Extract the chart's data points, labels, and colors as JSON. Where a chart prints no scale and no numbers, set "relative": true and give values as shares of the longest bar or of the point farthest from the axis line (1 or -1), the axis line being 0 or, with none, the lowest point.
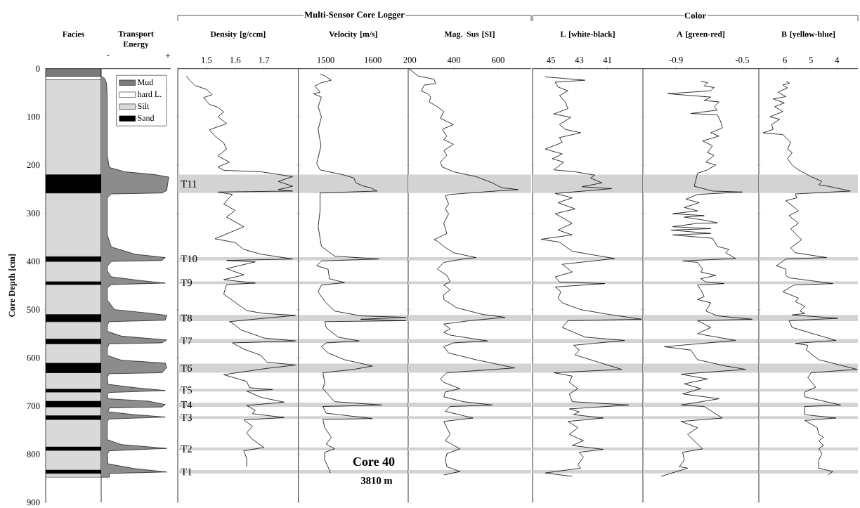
{
  "chart_data": [
    {
      "type": "bar",
      "stacked": true,
      "title": "Facies",
      "ylabel": "Core Depth [cm]",
      "categories": [
        null
      ],
      "ylim": [
        900,
        0
      ],
      "yticks": [
        0,
        100,
        200,
        300,
        400,
        500,
        600,
        700,
        800,
        900
      ],
      "tick_labels": "y",
      "legend": "right",
      "series": [
        {
          "name": "Mud",
          "color": "#7a7a7a",
          "values": [
            16
          ]
        },
        {
          "name": "hard L.",
          "color": "#ffffff",
          "values": [
            7
          ]
        },
        {
          "name": "Silt",
          "color": "#d9d9d9",
          "values": [
            197
          ]
        },
        {
          "name": "Sand",
          "color": "#000000",
          "values": [
            38
          ]
        },
        {
          "color": "#d9d9d9",
          "values": [
            132
          ]
        },
        {
          "color": "#000000",
          "values": [
            10
          ]
        },
        {
          "color": "#d9d9d9",
          "values": [
            42
          ]
        },
        {
          "color": "#000000",
          "values": [
            6
          ]
        },
        {
          "color": "#d9d9d9",
          "values": [
            62
          ]
        },
        {
          "color": "#000000",
          "values": [
            15
          ]
        },
        {
          "color": "#d9d9d9",
          "values": [
            36
          ]
        },
        {
          "color": "#000000",
          "values": [
            10
          ]
        },
        {
          "color": "#d9d9d9",
          "values": [
            40
          ]
        },
        {
          "color": "#000000",
          "values": [
            20
          ]
        },
        {
          "color": "#d9d9d9",
          "values": [
            34
          ]
        },
        {
          "color": "#000000",
          "values": [
            6
          ]
        },
        {
          "color": "#d9d9d9",
          "values": [
            19
          ]
        },
        {
          "color": "#000000",
          "values": [
            12
          ]
        },
        {
          "color": "#d9d9d9",
          "values": [
            18
          ]
        },
        {
          "color": "#000000",
          "values": [
            8
          ]
        },
        {
          "color": "#d9d9d9",
          "values": [
            57
          ]
        },
        {
          "color": "#000000",
          "values": [
            7
          ]
        },
        {
          "color": "#d9d9d9",
          "values": [
            41
          ]
        },
        {
          "color": "#000000",
          "values": [
            7
          ]
        },
        {
          "color": "#d9d9d9",
          "values": [
            8
          ]
        }
      ]
    },
    {
      "type": "area",
      "orientation": "horizontal",
      "relative": true,
      "title": "Transport Energy",
      "ylim": [
        900,
        0
      ],
      "tick_labels": false,
      "color": "#8c8c8c",
      "annotations": [
        "-",
        "+"
      ],
      "x": [
        16,
        20,
        30,
        60,
        180,
        205,
        214,
        220,
        225,
        253,
        258,
        260,
        268,
        345,
        370,
        385,
        392,
        398,
        400,
        410,
        420,
        432,
        440,
        445,
        448,
        455,
        480,
        500,
        508,
        512,
        522,
        525,
        532,
        545,
        555,
        563,
        569,
        571,
        580,
        595,
        605,
        611,
        620,
        631,
        633,
        640,
        655,
        662,
        668,
        672,
        676,
        685,
        690,
        697,
        702,
        704,
        712,
        718,
        723,
        727,
        732,
        770,
        780,
        788,
        793,
        800,
        820,
        830,
        837,
        840,
        848,
        848
      ],
      "values": [
        0,
        0.05,
        0.08,
        0.09,
        0.09,
        0.12,
        0.35,
        0.8,
        1,
        0.97,
        0.9,
        0.15,
        0.09,
        0.09,
        0.15,
        0.5,
        0.95,
        0.9,
        0.15,
        0.09,
        0.09,
        0.15,
        0.6,
        0.95,
        0.15,
        0.09,
        0.09,
        0.2,
        0.75,
        0.97,
        0.95,
        0.12,
        0.09,
        0.09,
        0.3,
        0.97,
        0.9,
        0.12,
        0.09,
        0.09,
        0.3,
        0.95,
        0.97,
        0.9,
        0.12,
        0.09,
        0.1,
        0.5,
        0.95,
        0.12,
        0.09,
        0.1,
        0.7,
        0.95,
        0.9,
        0.12,
        0.1,
        0.5,
        0.95,
        0.12,
        0.09,
        0.09,
        0.3,
        0.97,
        0.12,
        0.09,
        0.1,
        0.5,
        0.97,
        0.12,
        0.12,
        0
      ]
    },
    {
      "type": "line",
      "orientation": "horizontal",
      "title": "Density [g/ccm]",
      "xlim": [
        1.4,
        1.82
      ],
      "xticks": [
        1.5,
        1.6,
        1.7
      ],
      "ylim": [
        900,
        0
      ],
      "yticks": [
        0,
        100,
        200,
        300,
        400,
        500,
        600,
        700,
        800,
        900
      ],
      "tick_labels": "x",
      "color": "#000000",
      "annotations": [
        "Multi-Sensor Core Logger"
      ],
      "x": [
        15,
        23,
        35,
        43,
        54,
        60,
        74,
        80,
        90,
        100,
        114,
        127,
        140,
        154,
        167,
        181,
        194,
        204,
        211,
        214,
        224,
        234,
        244,
        251,
        254,
        256,
        261,
        281,
        294,
        308,
        328,
        353,
        361,
        375,
        385,
        395,
        398,
        401,
        415,
        428,
        438,
        445,
        448,
        468,
        485,
        502,
        508,
        512,
        518,
        525,
        532,
        542,
        559,
        565,
        569,
        582,
        595,
        609,
        615,
        622,
        635,
        649,
        662,
        666,
        669,
        682,
        692,
        699,
        709,
        716,
        724,
        729,
        742,
        756,
        769,
        786,
        793,
        809,
        826
      ],
      "values": [
        1.43,
        1.44,
        1.46,
        1.5,
        1.52,
        1.49,
        1.51,
        1.54,
        1.56,
        1.54,
        1.57,
        1.51,
        1.53,
        1.56,
        1.57,
        1.54,
        1.58,
        1.54,
        1.56,
        1.69,
        1.8,
        1.75,
        1.8,
        1.75,
        1.8,
        1.54,
        1.59,
        1.56,
        1.6,
        1.57,
        1.63,
        1.53,
        1.6,
        1.63,
        1.69,
        1.8,
        1.57,
        1.67,
        1.57,
        1.63,
        1.56,
        1.67,
        1.57,
        1.56,
        1.6,
        1.64,
        1.7,
        1.81,
        1.7,
        1.58,
        1.6,
        1.62,
        1.7,
        1.81,
        1.59,
        1.63,
        1.69,
        1.71,
        1.81,
        1.71,
        1.56,
        1.64,
        1.65,
        1.73,
        1.64,
        1.69,
        1.77,
        1.64,
        1.67,
        1.66,
        1.77,
        1.63,
        1.66,
        1.64,
        1.66,
        1.7,
        1.63,
        1.64,
        1.64
      ],
      "bands": [
        {
          "axis": "y",
          "from": 220,
          "to": 258,
          "label": "T11",
          "color": "#d3d3d3"
        },
        {
          "axis": "y",
          "from": 391,
          "to": 398,
          "label": "T10",
          "color": "#d3d3d3"
        },
        {
          "axis": "y",
          "from": 441,
          "to": 447,
          "label": "T9",
          "color": "#d3d3d3"
        },
        {
          "axis": "y",
          "from": 511,
          "to": 524,
          "label": "T8",
          "color": "#d3d3d3"
        },
        {
          "axis": "y",
          "from": 561,
          "to": 569,
          "label": "T7",
          "color": "#d3d3d3"
        },
        {
          "axis": "y",
          "from": 612,
          "to": 631,
          "label": "T6",
          "color": "#d3d3d3"
        },
        {
          "axis": "y",
          "from": 664,
          "to": 670,
          "label": "T5",
          "color": "#d3d3d3"
        },
        {
          "axis": "y",
          "from": 693,
          "to": 702,
          "label": "T4",
          "color": "#d3d3d3"
        },
        {
          "axis": "y",
          "from": 721,
          "to": 727,
          "label": "T3",
          "color": "#d3d3d3"
        },
        {
          "axis": "y",
          "from": 786,
          "to": 792,
          "label": "T2",
          "color": "#d3d3d3"
        },
        {
          "axis": "y",
          "from": 833,
          "to": 840,
          "label": "T1",
          "color": "#d3d3d3"
        }
      ]
    },
    {
      "type": "line",
      "orientation": "horizontal",
      "title": "Velocity [m/s]",
      "xlim": [
        1442,
        1675
      ],
      "xticks": [
        1500,
        1600
      ],
      "ylim": [
        900,
        0
      ],
      "yticks": [
        0,
        100,
        200,
        300,
        400,
        500,
        600,
        700,
        800,
        900
      ],
      "tick_labels": "x",
      "color": "#000000",
      "annotations": [
        "Core 40",
        "3810 m"
      ],
      "x": [
        11,
        15,
        24,
        29,
        36,
        49,
        52,
        59,
        79,
        100,
        126,
        160,
        197,
        210,
        221,
        227,
        237,
        244,
        247,
        254,
        258,
        295,
        328,
        369,
        389,
        395,
        399,
        409,
        416,
        436,
        444,
        449,
        463,
        483,
        503,
        513,
        516,
        520,
        523,
        525,
        537,
        557,
        565,
        569,
        577,
        590,
        604,
        617,
        624,
        631,
        651,
        664,
        691,
        698,
        701,
        715,
        726,
        728,
        745,
        765,
        779,
        789,
        796,
        812,
        833,
        839
      ],
      "values": [
        1488,
        1498,
        1512,
        1491,
        1477,
        1488,
        1474,
        1491,
        1484,
        1491,
        1484,
        1490,
        1481,
        1488,
        1540,
        1560,
        1564,
        1581,
        1595,
        1609,
        1488,
        1488,
        1484,
        1491,
        1519,
        1613,
        1491,
        1481,
        1505,
        1508,
        1540,
        1491,
        1484,
        1498,
        1519,
        1574,
        1670,
        1574,
        1670,
        1498,
        1501,
        1526,
        1571,
        1501,
        1491,
        1505,
        1540,
        1599,
        1560,
        1494,
        1498,
        1494,
        1519,
        1619,
        1494,
        1501,
        1599,
        1494,
        1498,
        1512,
        1501,
        1519,
        1498,
        1498,
        1508,
        1510
      ],
      "bands": [
        {
          "axis": "y",
          "from": 220,
          "to": 258,
          "color": "#d3d3d3"
        },
        {
          "axis": "y",
          "from": 391,
          "to": 398,
          "color": "#d3d3d3"
        },
        {
          "axis": "y",
          "from": 441,
          "to": 447,
          "color": "#d3d3d3"
        },
        {
          "axis": "y",
          "from": 511,
          "to": 524,
          "color": "#d3d3d3"
        },
        {
          "axis": "y",
          "from": 561,
          "to": 569,
          "color": "#d3d3d3"
        },
        {
          "axis": "y",
          "from": 612,
          "to": 631,
          "color": "#d3d3d3"
        },
        {
          "axis": "y",
          "from": 664,
          "to": 670,
          "color": "#d3d3d3"
        },
        {
          "axis": "y",
          "from": 693,
          "to": 702,
          "color": "#d3d3d3"
        },
        {
          "axis": "y",
          "from": 721,
          "to": 727,
          "color": "#d3d3d3"
        },
        {
          "axis": "y",
          "from": 786,
          "to": 792,
          "color": "#d3d3d3"
        },
        {
          "axis": "y",
          "from": 833,
          "to": 840,
          "color": "#d3d3d3"
        }
      ]
    },
    {
      "type": "line",
      "orientation": "horizontal",
      "title": "Mag. Sus [SI]",
      "xlim": [
        193,
        750
      ],
      "xticks": [
        200,
        400,
        600
      ],
      "ylim": [
        900,
        0
      ],
      "yticks": [
        0,
        100,
        200,
        300,
        400,
        500,
        600,
        700,
        800,
        900
      ],
      "tick_labels": "x",
      "color": "#000000",
      "x": [
        0,
        15,
        22,
        31,
        34,
        46,
        52,
        59,
        69,
        79,
        89,
        103,
        116,
        126,
        140,
        147,
        157,
        170,
        180,
        194,
        204,
        214,
        224,
        237,
        244,
        247,
        251,
        253,
        261,
        264,
        281,
        291,
        301,
        321,
        342,
        355,
        358,
        369,
        382,
        392,
        395,
        402,
        416,
        429,
        442,
        449,
        459,
        469,
        479,
        496,
        510,
        516,
        523,
        530,
        540,
        547,
        553,
        565,
        569,
        577,
        590,
        604,
        621,
        631,
        644,
        651,
        664,
        671,
        681,
        691,
        698,
        701,
        711,
        725,
        732,
        745,
        759,
        772,
        779,
        789,
        799,
        812,
        826,
        836,
        843
      ],
      "values": [
        196,
        237,
        310,
        317,
        266,
        251,
        281,
        295,
        288,
        325,
        354,
        339,
        398,
        347,
        368,
        354,
        398,
        354,
        368,
        339,
        347,
        398,
        500,
        574,
        603,
        618,
        691,
        618,
        383,
        361,
        376,
        361,
        376,
        354,
        368,
        310,
        325,
        354,
        398,
        500,
        442,
        354,
        325,
        368,
        383,
        354,
        383,
        354,
        354,
        412,
        530,
        632,
        471,
        354,
        383,
        354,
        383,
        552,
        398,
        354,
        376,
        500,
        676,
        368,
        339,
        354,
        427,
        361,
        354,
        442,
        574,
        383,
        361,
        486,
        354,
        368,
        383,
        361,
        390,
        427,
        368,
        361,
        368,
        427,
        354
      ],
      "bands": [
        {
          "axis": "y",
          "from": 220,
          "to": 258,
          "color": "#d3d3d3"
        },
        {
          "axis": "y",
          "from": 391,
          "to": 398,
          "color": "#d3d3d3"
        },
        {
          "axis": "y",
          "from": 441,
          "to": 447,
          "color": "#d3d3d3"
        },
        {
          "axis": "y",
          "from": 511,
          "to": 524,
          "color": "#d3d3d3"
        },
        {
          "axis": "y",
          "from": 561,
          "to": 569,
          "color": "#d3d3d3"
        },
        {
          "axis": "y",
          "from": 612,
          "to": 631,
          "color": "#d3d3d3"
        },
        {
          "axis": "y",
          "from": 664,
          "to": 670,
          "color": "#d3d3d3"
        },
        {
          "axis": "y",
          "from": 693,
          "to": 702,
          "color": "#d3d3d3"
        },
        {
          "axis": "y",
          "from": 721,
          "to": 727,
          "color": "#d3d3d3"
        },
        {
          "axis": "y",
          "from": 786,
          "to": 792,
          "color": "#d3d3d3"
        },
        {
          "axis": "y",
          "from": 833,
          "to": 840,
          "color": "#d3d3d3"
        }
      ]
    },
    {
      "type": "line",
      "orientation": "horizontal",
      "title": "L [white-black]",
      "xlim": [
        46.3,
        38.5
      ],
      "xticks": [
        45,
        43,
        41
      ],
      "ylim": [
        900,
        0
      ],
      "yticks": [
        0,
        100,
        200,
        300,
        400,
        500,
        600,
        700,
        800,
        900
      ],
      "tick_labels": "x",
      "color": "#000000",
      "annotations": [
        "Color"
      ],
      "x": [
        17,
        24,
        28,
        38,
        46,
        56,
        69,
        83,
        94,
        101,
        116,
        126,
        133,
        143,
        153,
        167,
        177,
        187,
        194,
        210,
        214,
        221,
        227,
        237,
        245,
        249,
        259,
        268,
        278,
        291,
        301,
        321,
        335,
        345,
        354,
        360,
        379,
        394,
        406,
        422,
        432,
        443,
        446,
        453,
        463,
        476,
        486,
        500,
        510,
        520,
        523,
        537,
        557,
        564,
        574,
        584,
        594,
        624,
        631,
        638,
        651,
        664,
        675,
        691,
        698,
        706,
        712,
        718,
        725,
        732,
        745,
        759,
        772,
        782,
        790,
        796,
        806,
        822,
        829,
        839,
        846
      ],
      "values": [
        45.4,
        42.6,
        44.7,
        44.5,
        43.8,
        44.4,
        44.0,
        43.8,
        44.8,
        43.6,
        44.4,
        44.0,
        42.9,
        44.4,
        44.2,
        45.4,
        44.2,
        44.9,
        44.1,
        44.8,
        43.3,
        41.9,
        42.2,
        41.4,
        42.8,
        40.7,
        44.7,
        43.5,
        44.5,
        43.3,
        44.7,
        43.5,
        44.5,
        43.5,
        45.7,
        44.4,
        43.5,
        40.5,
        44.2,
        43.5,
        44.7,
        44.4,
        41.2,
        44.7,
        44.3,
        44.5,
        44.2,
        42.9,
        40.9,
        38.6,
        43.8,
        44.2,
        42.6,
        39.8,
        43.4,
        43.0,
        43.3,
        40.0,
        44.8,
        43.5,
        43.7,
        43.1,
        43.7,
        43.5,
        39.5,
        43.7,
        43.0,
        43.4,
        41.3,
        43.8,
        43.1,
        43.7,
        42.7,
        43.5,
        41.3,
        43.0,
        42.7,
        43.1,
        42.9,
        45.4,
        43.5
      ],
      "bands": [
        {
          "axis": "y",
          "from": 220,
          "to": 258,
          "color": "#d3d3d3"
        },
        {
          "axis": "y",
          "from": 391,
          "to": 398,
          "color": "#d3d3d3"
        },
        {
          "axis": "y",
          "from": 441,
          "to": 447,
          "color": "#d3d3d3"
        },
        {
          "axis": "y",
          "from": 511,
          "to": 524,
          "color": "#d3d3d3"
        },
        {
          "axis": "y",
          "from": 561,
          "to": 569,
          "color": "#d3d3d3"
        },
        {
          "axis": "y",
          "from": 612,
          "to": 631,
          "color": "#d3d3d3"
        },
        {
          "axis": "y",
          "from": 664,
          "to": 670,
          "color": "#d3d3d3"
        },
        {
          "axis": "y",
          "from": 693,
          "to": 702,
          "color": "#d3d3d3"
        },
        {
          "axis": "y",
          "from": 721,
          "to": 727,
          "color": "#d3d3d3"
        },
        {
          "axis": "y",
          "from": 786,
          "to": 792,
          "color": "#d3d3d3"
        },
        {
          "axis": "y",
          "from": 833,
          "to": 840,
          "color": "#d3d3d3"
        }
      ]
    },
    {
      "type": "line",
      "orientation": "horizontal",
      "title": "A [green-red]",
      "xlim": [
        -1.1,
        -0.4
      ],
      "xticks": [
        -0.9,
        -0.5
      ],
      "ylim": [
        900,
        0
      ],
      "yticks": [
        0,
        100,
        200,
        300,
        400,
        500,
        600,
        700,
        800,
        900
      ],
      "tick_labels": "x",
      "color": "#000000",
      "x": [
        26,
        29,
        36,
        39,
        46,
        52,
        59,
        66,
        69,
        79,
        86,
        93,
        96,
        110,
        123,
        133,
        140,
        150,
        160,
        174,
        180,
        194,
        200,
        210,
        217,
        244,
        254,
        256,
        261,
        271,
        278,
        288,
        295,
        301,
        305,
        308,
        315,
        320,
        321,
        328,
        332,
        335,
        342,
        345,
        352,
        369,
        375,
        382,
        394,
        399,
        402,
        416,
        422,
        429,
        436,
        443,
        446,
        449,
        459,
        473,
        479,
        486,
        503,
        513,
        520,
        523,
        537,
        550,
        564,
        577,
        584,
        604,
        617,
        624,
        634,
        644,
        654,
        664,
        675,
        685,
        698,
        701,
        725,
        732,
        745,
        759,
        789,
        796,
        812,
        826,
        829,
        846
      ],
      "values": [
        -0.75,
        -0.71,
        -0.73,
        -0.67,
        -0.69,
        -0.95,
        -0.69,
        -0.73,
        -0.64,
        -0.67,
        -0.65,
        -0.81,
        -0.65,
        -0.63,
        -0.62,
        -0.69,
        -0.64,
        -0.74,
        -0.68,
        -0.71,
        -0.67,
        -0.72,
        -0.66,
        -0.71,
        -0.77,
        -0.79,
        -0.68,
        -0.5,
        -0.77,
        -0.84,
        -0.76,
        -0.85,
        -0.77,
        -0.92,
        -0.73,
        -0.85,
        -0.72,
        -0.65,
        -0.77,
        -0.92,
        -0.69,
        -0.93,
        -0.69,
        -0.92,
        -0.68,
        -0.65,
        -0.58,
        -0.6,
        -0.54,
        -0.86,
        -0.77,
        -0.74,
        -0.75,
        -0.66,
        -0.75,
        -0.72,
        -0.61,
        -0.77,
        -0.75,
        -0.73,
        -0.77,
        -0.69,
        -0.72,
        -0.65,
        -0.44,
        -0.77,
        -0.69,
        -0.77,
        -0.54,
        -0.97,
        -0.81,
        -0.77,
        -0.6,
        -0.48,
        -0.87,
        -0.71,
        -0.85,
        -0.75,
        -0.86,
        -0.64,
        -0.87,
        -0.73,
        -0.62,
        -0.87,
        -0.77,
        -0.83,
        -0.74,
        -0.86,
        -0.85,
        -0.88,
        -0.83,
        -0.99
      ],
      "bands": [
        {
          "axis": "y",
          "from": 220,
          "to": 258,
          "color": "#d3d3d3"
        },
        {
          "axis": "y",
          "from": 391,
          "to": 398,
          "color": "#d3d3d3"
        },
        {
          "axis": "y",
          "from": 441,
          "to": 447,
          "color": "#d3d3d3"
        },
        {
          "axis": "y",
          "from": 511,
          "to": 524,
          "color": "#d3d3d3"
        },
        {
          "axis": "y",
          "from": 561,
          "to": 569,
          "color": "#d3d3d3"
        },
        {
          "axis": "y",
          "from": 612,
          "to": 631,
          "color": "#d3d3d3"
        },
        {
          "axis": "y",
          "from": 664,
          "to": 670,
          "color": "#d3d3d3"
        },
        {
          "axis": "y",
          "from": 693,
          "to": 702,
          "color": "#d3d3d3"
        },
        {
          "axis": "y",
          "from": 721,
          "to": 727,
          "color": "#d3d3d3"
        },
        {
          "axis": "y",
          "from": 786,
          "to": 792,
          "color": "#d3d3d3"
        },
        {
          "axis": "y",
          "from": 833,
          "to": 840,
          "color": "#d3d3d3"
        }
      ]
    },
    {
      "type": "line",
      "orientation": "horizontal",
      "title": "B [yellow-blue]",
      "xlim": [
        7,
        3.2
      ],
      "xticks": [
        6,
        5,
        4
      ],
      "ylim": [
        900,
        0
      ],
      "yticks": [
        0,
        100,
        200,
        300,
        400,
        500,
        600,
        700,
        800,
        900
      ],
      "tick_labels": "x",
      "color": "#000000",
      "x": [
        26,
        30,
        34,
        40,
        49,
        58,
        63,
        71,
        79,
        89,
        100,
        105,
        116,
        126,
        133,
        137,
        143,
        153,
        167,
        174,
        187,
        200,
        210,
        224,
        234,
        241,
        244,
        254,
        260,
        268,
        274,
        295,
        305,
        321,
        332,
        355,
        372,
        382,
        392,
        395,
        409,
        416,
        429,
        434,
        446,
        449,
        463,
        476,
        483,
        493,
        503,
        508,
        511,
        518,
        523,
        537,
        543,
        564,
        570,
        574,
        584,
        604,
        624,
        631,
        641,
        661,
        671,
        681,
        698,
        701,
        718,
        725,
        730,
        745,
        759,
        765,
        772,
        782,
        789,
        799,
        812,
        829,
        836,
        843
      ],
      "values": [
        5.96,
        5.82,
        6.08,
        5.9,
        6.27,
        5.96,
        6.45,
        6.02,
        6.39,
        6.08,
        6.57,
        6.2,
        6.51,
        6.45,
        6.83,
        6.08,
        5.96,
        5.78,
        5.9,
        5.72,
        5.9,
        5.72,
        5.48,
        5.0,
        4.58,
        4.7,
        4.34,
        3.49,
        5.6,
        5.54,
        5.96,
        5.48,
        5.84,
        5.48,
        5.78,
        5.36,
        5.78,
        5.6,
        4.4,
        5.96,
        6.33,
        5.96,
        5.96,
        5.84,
        4.16,
        5.66,
        6.08,
        5.48,
        5.6,
        5.24,
        5.42,
        5.24,
        5.72,
        3.98,
        5.84,
        5.72,
        5.36,
        4.04,
        5.6,
        5.12,
        5.18,
        4.7,
        3.23,
        5.0,
        5.12,
        4.82,
        5.24,
        5.24,
        3.86,
        5.24,
        5.24,
        4.04,
        5.24,
        4.76,
        4.7,
        4.52,
        4.7,
        4.52,
        4.7,
        4.58,
        4.7,
        4.7,
        4.16,
        4.34
      ],
      "bands": [
        {
          "axis": "y",
          "from": 220,
          "to": 258,
          "color": "#d3d3d3"
        },
        {
          "axis": "y",
          "from": 391,
          "to": 398,
          "color": "#d3d3d3"
        },
        {
          "axis": "y",
          "from": 441,
          "to": 447,
          "color": "#d3d3d3"
        },
        {
          "axis": "y",
          "from": 511,
          "to": 524,
          "color": "#d3d3d3"
        },
        {
          "axis": "y",
          "from": 561,
          "to": 569,
          "color": "#d3d3d3"
        },
        {
          "axis": "y",
          "from": 612,
          "to": 631,
          "color": "#d3d3d3"
        },
        {
          "axis": "y",
          "from": 664,
          "to": 670,
          "color": "#d3d3d3"
        },
        {
          "axis": "y",
          "from": 693,
          "to": 702,
          "color": "#d3d3d3"
        },
        {
          "axis": "y",
          "from": 721,
          "to": 727,
          "color": "#d3d3d3"
        },
        {
          "axis": "y",
          "from": 786,
          "to": 792,
          "color": "#d3d3d3"
        },
        {
          "axis": "y",
          "from": 833,
          "to": 840,
          "color": "#d3d3d3"
        }
      ]
    }
  ]
}
